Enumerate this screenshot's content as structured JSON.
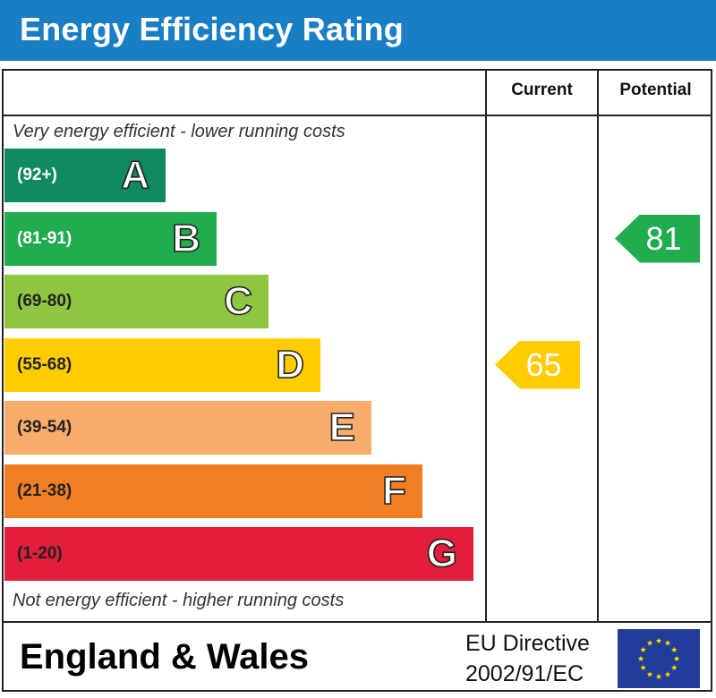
{
  "title": "Energy Efficiency Rating",
  "columns": {
    "current": "Current",
    "potential": "Potential"
  },
  "captions": {
    "top": "Very energy efficient - lower running costs",
    "bottom": "Not energy efficient - higher running costs"
  },
  "footer": {
    "country": "England & Wales",
    "directive_line1": "EU Directive",
    "directive_line2": "2002/91/EC"
  },
  "chart_data": {
    "type": "bar",
    "categories": [
      "A",
      "B",
      "C",
      "D",
      "E",
      "F",
      "G"
    ],
    "bands": [
      {
        "letter": "A",
        "range": "(92+)",
        "color": "#0f8a5f",
        "text_color": "#ffffff"
      },
      {
        "letter": "B",
        "range": "(81-91)",
        "color": "#21ad4f",
        "text_color": "#ffffff"
      },
      {
        "letter": "C",
        "range": "(69-80)",
        "color": "#8ec641",
        "text_color": "#222222"
      },
      {
        "letter": "D",
        "range": "(55-68)",
        "color": "#ffcc00",
        "text_color": "#222222"
      },
      {
        "letter": "E",
        "range": "(39-54)",
        "color": "#f7ac6b",
        "text_color": "#222222"
      },
      {
        "letter": "F",
        "range": "(21-38)",
        "color": "#f07f23",
        "text_color": "#222222"
      },
      {
        "letter": "G",
        "range": "(1-20)",
        "color": "#e31d3c",
        "text_color": "#222222"
      }
    ],
    "ratings": {
      "current": {
        "value": 65,
        "band": "D",
        "color": "#ffcc00"
      },
      "potential": {
        "value": 81,
        "band": "B",
        "color": "#21ad4f"
      }
    }
  }
}
